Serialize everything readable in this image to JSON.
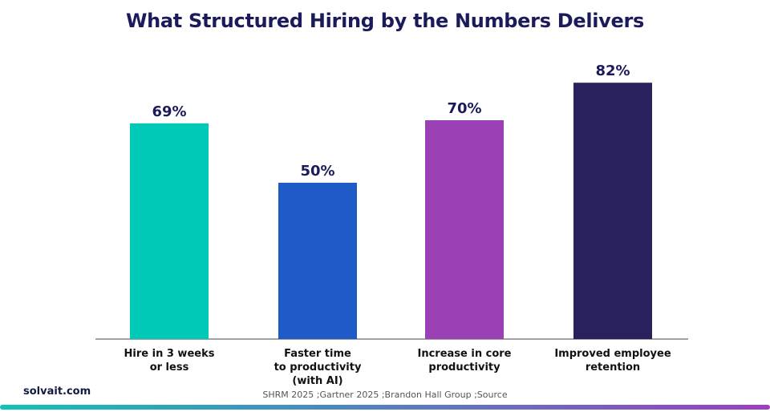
{
  "chart_data": {
    "type": "bar",
    "title": "What Structured Hiring by the Numbers Delivers",
    "categories": [
      "Hire in 3 weeks\nor less",
      "Faster time\nto productivity\n(with AI)",
      "Increase in core\nproductivity",
      "Improved employee\nretention"
    ],
    "values": [
      69,
      50,
      70,
      82
    ],
    "value_labels": [
      "69%",
      "50%",
      "70%",
      "82%"
    ],
    "colors": [
      "#00c9b8",
      "#1f5bc6",
      "#9b3fb5",
      "#28215e"
    ],
    "ylim": [
      0,
      100
    ],
    "grid": false,
    "legend": "none"
  },
  "footer": {
    "brand": "solvait.com",
    "source": "SHRM 2025 ;Gartner 2025 ;Brandon Hall Group  ;Source"
  },
  "colors": {
    "title": "#1b1b5c",
    "gradient_start": "#0fc2b9",
    "gradient_end": "#9b3fc0"
  }
}
